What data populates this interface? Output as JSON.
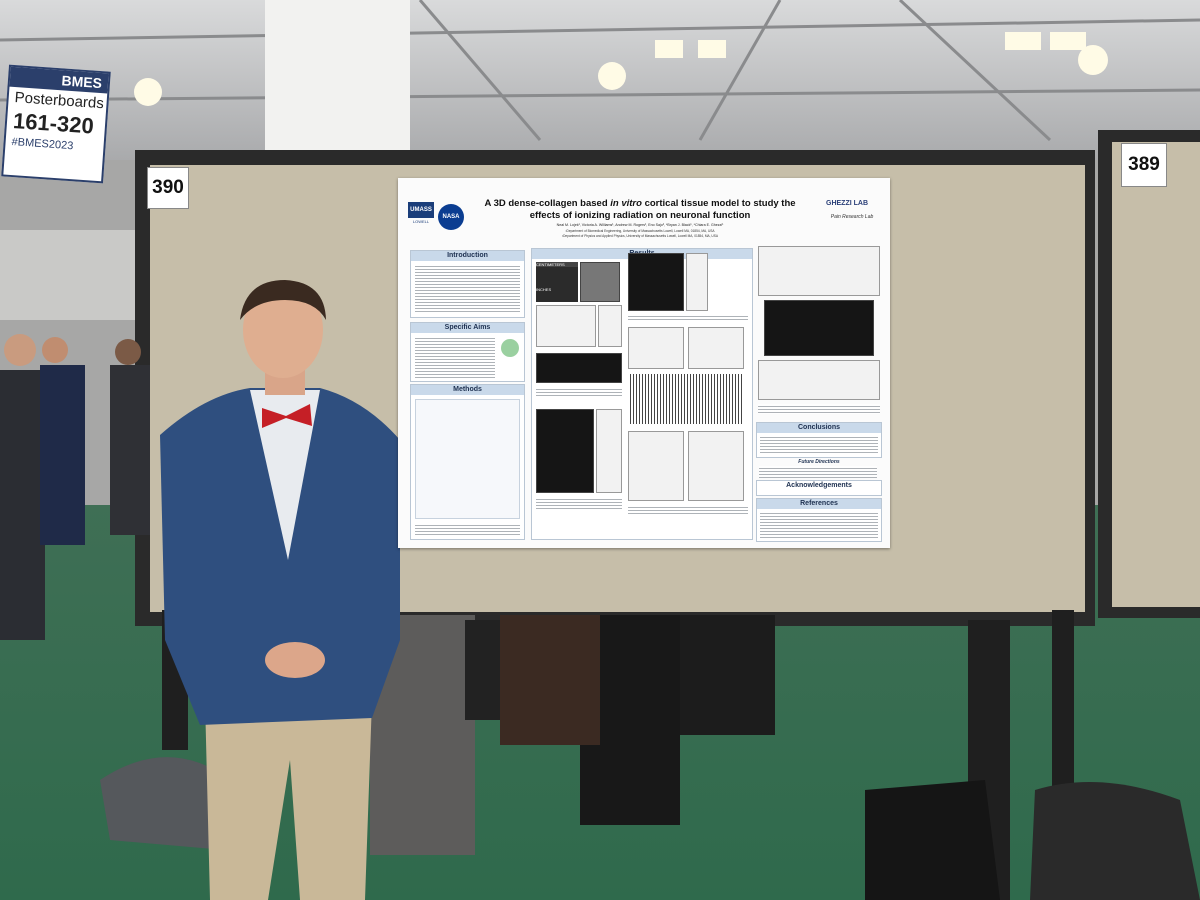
{
  "signs": {
    "board_left": "390",
    "board_right": "389",
    "banner": {
      "org": "BMES",
      "label": "Posterboards",
      "range": "161-320",
      "tag": "#BMES2023"
    }
  },
  "poster": {
    "title_parts": [
      "A 3D dense-collagen based",
      "in vitro",
      "cortical tissue model to study the effects of ionizing",
      "radiation on neuronal function"
    ],
    "authors": "Neal M. Lojek¹, Victoria A. Williams¹, Andrew M. Rogers¹, Eno Sajo², *Bryan J. Black¹, *Chiara E. Ghezzi¹",
    "affiliations": [
      "¹Department of Biomedical Engineering, University of Massachusetts Lowell, Lowell MA, 01854, MA, USA",
      "²Department of Physics and Applied Physics, University of Massachusetts Lowell, Lowell MA, 01854, MA, USA"
    ],
    "logos": {
      "umass": "UMASS",
      "lowell": "LOWELL",
      "nasa": "NASA"
    },
    "lab": {
      "name": "GHEZZI LAB",
      "sub": "Pain Research Lab"
    },
    "sections": {
      "introduction": "Introduction",
      "aims": "Specific Aims",
      "methods": "Methods",
      "results": "Results",
      "conclusions": "Conclusions",
      "future": "Future Directions",
      "acknowledgements": "Acknowledgements",
      "references": "References"
    },
    "figure_labels": {
      "centimeters": "CENTIMETERS",
      "inches": "INCHES"
    }
  }
}
